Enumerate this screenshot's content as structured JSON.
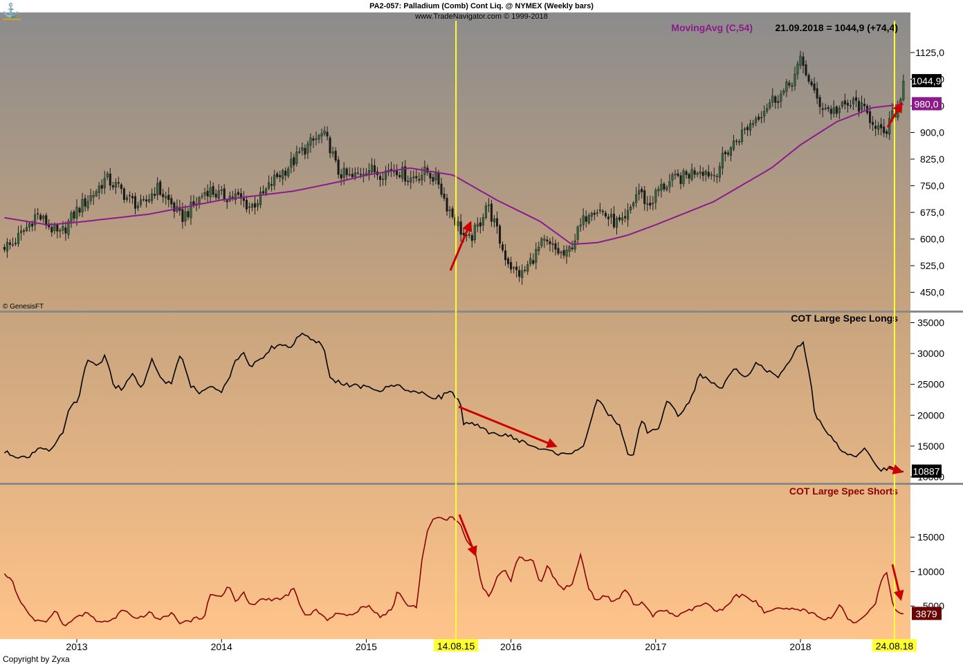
{
  "header": {
    "title": "PA2-057:  Palladium (Comb) Cont Liq. @ NYMEX  (Weekly bars)",
    "subtitle": "www.TradeNavigator.com © 1999-2018",
    "genesis": "© GenesisFT",
    "copyright": "Copyright by Zyxa"
  },
  "colors": {
    "price_bar": "#1a1a1a",
    "moving_avg": "#8b1a8b",
    "longs_line": "#000000",
    "shorts_line": "#8b0000",
    "marker_line": "#ffff33",
    "arrow": "#cc0000",
    "bg_top": "#8c8c8c",
    "bg_bottom": "#ffc48a"
  },
  "chart_data": [
    {
      "type": "candlestick",
      "ma_label": "MovingAvg (C,54)",
      "readout": "21.09.2018 = 1044,9 (+74,4)",
      "ylim": [
        420,
        1160
      ],
      "y_ticks": [
        "1125,0",
        "1050,0",
        "975,0",
        "900,0",
        "825,0",
        "750,0",
        "675,0",
        "600,0",
        "525,0",
        "450,0"
      ],
      "last_price_label": "1044,9",
      "last_ma_label": "980,0",
      "x_years": [
        "2013",
        "2014",
        "2015",
        "2016",
        "2017",
        "2018"
      ],
      "markers": [
        "14.08.15",
        "24.08.18"
      ],
      "close_anchors": [
        [
          2012.55,
          582
        ],
        [
          2012.65,
          630
        ],
        [
          2012.72,
          670
        ],
        [
          2012.8,
          640
        ],
        [
          2012.88,
          608
        ],
        [
          2013.0,
          680
        ],
        [
          2013.12,
          730
        ],
        [
          2013.2,
          770
        ],
        [
          2013.3,
          740
        ],
        [
          2013.35,
          715
        ],
        [
          2013.45,
          690
        ],
        [
          2013.55,
          745
        ],
        [
          2013.65,
          700
        ],
        [
          2013.72,
          658
        ],
        [
          2013.8,
          690
        ],
        [
          2013.9,
          740
        ],
        [
          2014.0,
          720
        ],
        [
          2014.1,
          720
        ],
        [
          2014.2,
          690
        ],
        [
          2014.28,
          720
        ],
        [
          2014.38,
          775
        ],
        [
          2014.48,
          810
        ],
        [
          2014.55,
          845
        ],
        [
          2014.62,
          870
        ],
        [
          2014.7,
          895
        ],
        [
          2014.75,
          860
        ],
        [
          2014.8,
          790
        ],
        [
          2014.9,
          770
        ],
        [
          2015.0,
          800
        ],
        [
          2015.1,
          785
        ],
        [
          2015.2,
          800
        ],
        [
          2015.3,
          770
        ],
        [
          2015.42,
          790
        ],
        [
          2015.5,
          760
        ],
        [
          2015.55,
          700
        ],
        [
          2015.62,
          650
        ],
        [
          2015.7,
          590
        ],
        [
          2015.78,
          640
        ],
        [
          2015.83,
          700
        ],
        [
          2015.88,
          650
        ],
        [
          2015.95,
          560
        ],
        [
          2016.02,
          510
        ],
        [
          2016.08,
          500
        ],
        [
          2016.14,
          540
        ],
        [
          2016.22,
          590
        ],
        [
          2016.3,
          570
        ],
        [
          2016.38,
          550
        ],
        [
          2016.45,
          610
        ],
        [
          2016.55,
          690
        ],
        [
          2016.62,
          680
        ],
        [
          2016.7,
          650
        ],
        [
          2016.78,
          640
        ],
        [
          2016.88,
          740
        ],
        [
          2016.95,
          690
        ],
        [
          2017.02,
          740
        ],
        [
          2017.12,
          765
        ],
        [
          2017.2,
          775
        ],
        [
          2017.3,
          800
        ],
        [
          2017.4,
          780
        ],
        [
          2017.5,
          850
        ],
        [
          2017.6,
          900
        ],
        [
          2017.7,
          945
        ],
        [
          2017.8,
          990
        ],
        [
          2017.88,
          1010
        ],
        [
          2017.95,
          1050
        ],
        [
          2018.0,
          1100
        ],
        [
          2018.05,
          1060
        ],
        [
          2018.1,
          1000
        ],
        [
          2018.15,
          975
        ],
        [
          2018.22,
          960
        ],
        [
          2018.3,
          970
        ],
        [
          2018.38,
          985
        ],
        [
          2018.45,
          955
        ],
        [
          2018.52,
          925
        ],
        [
          2018.58,
          880
        ],
        [
          2018.62,
          935
        ],
        [
          2018.68,
          975
        ],
        [
          2018.72,
          1044.9
        ]
      ],
      "ma_anchors": [
        [
          2012.5,
          660
        ],
        [
          2012.8,
          640
        ],
        [
          2013.0,
          647
        ],
        [
          2013.5,
          670
        ],
        [
          2014.0,
          710
        ],
        [
          2014.5,
          735
        ],
        [
          2014.8,
          760
        ],
        [
          2015.0,
          780
        ],
        [
          2015.3,
          800
        ],
        [
          2015.6,
          780
        ],
        [
          2015.9,
          710
        ],
        [
          2016.2,
          650
        ],
        [
          2016.42,
          585
        ],
        [
          2016.6,
          590
        ],
        [
          2016.8,
          610
        ],
        [
          2017.0,
          640
        ],
        [
          2017.4,
          705
        ],
        [
          2017.8,
          800
        ],
        [
          2018.0,
          865
        ],
        [
          2018.25,
          930
        ],
        [
          2018.5,
          970
        ],
        [
          2018.72,
          980
        ]
      ]
    },
    {
      "type": "line",
      "label": "COT Large Spec Longs",
      "ylim": [
        9500,
        35500
      ],
      "y_ticks": [
        "35000",
        "30000",
        "25000",
        "20000",
        "15000",
        "10000"
      ],
      "last_label": "10887",
      "anchors": [
        [
          2012.5,
          14000
        ],
        [
          2012.65,
          13000
        ],
        [
          2012.75,
          15000
        ],
        [
          2012.82,
          14000
        ],
        [
          2012.9,
          17000
        ],
        [
          2012.95,
          21000
        ],
        [
          2013.02,
          23000
        ],
        [
          2013.05,
          27000
        ],
        [
          2013.08,
          29000
        ],
        [
          2013.15,
          28000
        ],
        [
          2013.2,
          30000
        ],
        [
          2013.25,
          25000
        ],
        [
          2013.32,
          24000
        ],
        [
          2013.38,
          27000
        ],
        [
          2013.45,
          24000
        ],
        [
          2013.52,
          29000
        ],
        [
          2013.58,
          26000
        ],
        [
          2013.65,
          25000
        ],
        [
          2013.72,
          30000
        ],
        [
          2013.78,
          25000
        ],
        [
          2013.85,
          23500
        ],
        [
          2013.92,
          25000
        ],
        [
          2014.0,
          24000
        ],
        [
          2014.05,
          26000
        ],
        [
          2014.1,
          29000
        ],
        [
          2014.15,
          30000
        ],
        [
          2014.2,
          28000
        ],
        [
          2014.28,
          29000
        ],
        [
          2014.35,
          31000
        ],
        [
          2014.42,
          31500
        ],
        [
          2014.48,
          31000
        ],
        [
          2014.55,
          33500
        ],
        [
          2014.62,
          32000
        ],
        [
          2014.7,
          31500
        ],
        [
          2014.75,
          26000
        ],
        [
          2014.85,
          25000
        ],
        [
          2015.0,
          24500
        ],
        [
          2015.1,
          24000
        ],
        [
          2015.2,
          25000
        ],
        [
          2015.3,
          24000
        ],
        [
          2015.38,
          23500
        ],
        [
          2015.45,
          23000
        ],
        [
          2015.52,
          23000
        ],
        [
          2015.58,
          24000
        ],
        [
          2015.62,
          23000
        ],
        [
          2015.65,
          22000
        ],
        [
          2015.67,
          18500
        ],
        [
          2015.75,
          18500
        ],
        [
          2015.82,
          17500
        ],
        [
          2015.9,
          17000
        ],
        [
          2016.0,
          16500
        ],
        [
          2016.1,
          15500
        ],
        [
          2016.2,
          14500
        ],
        [
          2016.3,
          14000
        ],
        [
          2016.38,
          13500
        ],
        [
          2016.45,
          14500
        ],
        [
          2016.5,
          15000
        ],
        [
          2016.55,
          19000
        ],
        [
          2016.6,
          22500
        ],
        [
          2016.68,
          20000
        ],
        [
          2016.75,
          18500
        ],
        [
          2016.8,
          14000
        ],
        [
          2016.85,
          13500
        ],
        [
          2016.9,
          19500
        ],
        [
          2016.95,
          17000
        ],
        [
          2017.02,
          18000
        ],
        [
          2017.08,
          22500
        ],
        [
          2017.15,
          20000
        ],
        [
          2017.2,
          21000
        ],
        [
          2017.25,
          23000
        ],
        [
          2017.3,
          26500
        ],
        [
          2017.38,
          25500
        ],
        [
          2017.45,
          24000
        ],
        [
          2017.5,
          26500
        ],
        [
          2017.55,
          28000
        ],
        [
          2017.62,
          26000
        ],
        [
          2017.7,
          28500
        ],
        [
          2017.78,
          27000
        ],
        [
          2017.85,
          26000
        ],
        [
          2017.92,
          28500
        ],
        [
          2017.98,
          31000
        ],
        [
          2018.02,
          31500
        ],
        [
          2018.07,
          26000
        ],
        [
          2018.1,
          20000
        ],
        [
          2018.15,
          18500
        ],
        [
          2018.22,
          16000
        ],
        [
          2018.3,
          14000
        ],
        [
          2018.38,
          13000
        ],
        [
          2018.45,
          14500
        ],
        [
          2018.5,
          13000
        ],
        [
          2018.55,
          11000
        ],
        [
          2018.62,
          11500
        ],
        [
          2018.68,
          10500
        ],
        [
          2018.72,
          10887
        ]
      ]
    },
    {
      "type": "line",
      "label": "COT Large Spec Shorts",
      "ylim": [
        800,
        20500
      ],
      "y_ticks": [
        "15000",
        "10000",
        "5000"
      ],
      "last_label": "3879",
      "anchors": [
        [
          2012.5,
          9500
        ],
        [
          2012.55,
          9000
        ],
        [
          2012.6,
          6000
        ],
        [
          2012.7,
          3000
        ],
        [
          2012.78,
          2500
        ],
        [
          2012.85,
          4500
        ],
        [
          2012.92,
          2000
        ],
        [
          2013.0,
          3500
        ],
        [
          2013.08,
          4000
        ],
        [
          2013.15,
          2500
        ],
        [
          2013.25,
          3000
        ],
        [
          2013.32,
          4500
        ],
        [
          2013.4,
          3000
        ],
        [
          2013.5,
          4000
        ],
        [
          2013.58,
          3000
        ],
        [
          2013.65,
          4000
        ],
        [
          2013.72,
          2500
        ],
        [
          2013.8,
          3000
        ],
        [
          2013.88,
          3500
        ],
        [
          2013.92,
          6500
        ],
        [
          2014.0,
          6500
        ],
        [
          2014.05,
          8000
        ],
        [
          2014.1,
          5500
        ],
        [
          2014.15,
          7000
        ],
        [
          2014.2,
          5000
        ],
        [
          2014.28,
          6000
        ],
        [
          2014.35,
          6000
        ],
        [
          2014.42,
          6000
        ],
        [
          2014.5,
          7500
        ],
        [
          2014.55,
          4500
        ],
        [
          2014.6,
          3500
        ],
        [
          2014.65,
          4500
        ],
        [
          2014.72,
          3000
        ],
        [
          2014.8,
          4000
        ],
        [
          2014.88,
          3500
        ],
        [
          2014.95,
          4500
        ],
        [
          2015.02,
          5000
        ],
        [
          2015.1,
          3500
        ],
        [
          2015.18,
          4500
        ],
        [
          2015.22,
          7500
        ],
        [
          2015.28,
          5000
        ],
        [
          2015.35,
          5000
        ],
        [
          2015.38,
          11000
        ],
        [
          2015.42,
          16000
        ],
        [
          2015.48,
          18000
        ],
        [
          2015.55,
          17500
        ],
        [
          2015.6,
          18000
        ],
        [
          2015.65,
          17000
        ],
        [
          2015.7,
          14000
        ],
        [
          2015.75,
          13000
        ],
        [
          2015.8,
          8000
        ],
        [
          2015.85,
          6500
        ],
        [
          2015.9,
          9000
        ],
        [
          2015.95,
          10500
        ],
        [
          2016.0,
          8500
        ],
        [
          2016.05,
          12500
        ],
        [
          2016.1,
          11500
        ],
        [
          2016.15,
          12000
        ],
        [
          2016.2,
          8000
        ],
        [
          2016.25,
          11000
        ],
        [
          2016.3,
          9000
        ],
        [
          2016.35,
          7500
        ],
        [
          2016.42,
          8000
        ],
        [
          2016.48,
          12500
        ],
        [
          2016.53,
          8000
        ],
        [
          2016.58,
          6000
        ],
        [
          2016.65,
          6500
        ],
        [
          2016.72,
          5500
        ],
        [
          2016.8,
          7500
        ],
        [
          2016.85,
          5000
        ],
        [
          2016.92,
          5500
        ],
        [
          2016.98,
          3500
        ],
        [
          2017.05,
          4500
        ],
        [
          2017.15,
          3500
        ],
        [
          2017.25,
          4500
        ],
        [
          2017.35,
          5500
        ],
        [
          2017.42,
          4000
        ],
        [
          2017.5,
          5000
        ],
        [
          2017.55,
          6500
        ],
        [
          2017.62,
          6500
        ],
        [
          2017.7,
          5500
        ],
        [
          2017.75,
          4000
        ],
        [
          2017.82,
          4500
        ],
        [
          2017.9,
          4500
        ],
        [
          2018.0,
          4500
        ],
        [
          2018.08,
          4000
        ],
        [
          2018.15,
          3000
        ],
        [
          2018.22,
          3500
        ],
        [
          2018.28,
          5500
        ],
        [
          2018.32,
          3000
        ],
        [
          2018.38,
          2500
        ],
        [
          2018.45,
          3500
        ],
        [
          2018.52,
          5500
        ],
        [
          2018.55,
          8000
        ],
        [
          2018.58,
          9500
        ],
        [
          2018.6,
          10000
        ],
        [
          2018.63,
          6000
        ],
        [
          2018.66,
          4000
        ],
        [
          2018.72,
          3879
        ]
      ]
    }
  ]
}
